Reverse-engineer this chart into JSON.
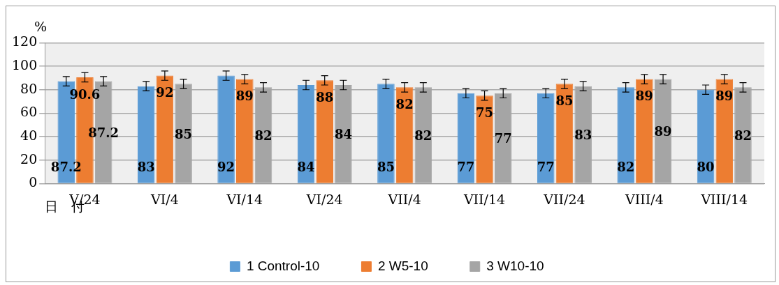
{
  "chart_data": {
    "type": "bar",
    "ylabel": "%",
    "xlabel": "日　付",
    "categories": [
      "V/24",
      "VI/4",
      "VI/14",
      "VI/24",
      "VII/4",
      "VII/14",
      "VII/24",
      "VIII/4",
      "VIII/14"
    ],
    "series": [
      {
        "name": "1 Control-10",
        "color": "#5b9bd5",
        "values": [
          87.2,
          83,
          92,
          84,
          85,
          77,
          77,
          82,
          80
        ],
        "errors": [
          4,
          4,
          4,
          4,
          4,
          4,
          4,
          4,
          4
        ]
      },
      {
        "name": "2 W5-10",
        "color": "#ed7d31",
        "values": [
          90.6,
          92,
          89,
          88,
          82,
          75,
          85,
          89,
          89
        ],
        "errors": [
          4,
          4,
          4,
          4,
          4,
          4,
          4,
          4,
          4
        ]
      },
      {
        "name": "3 W10-10",
        "color": "#a5a5a5",
        "values": [
          87.2,
          85,
          82,
          84,
          82,
          77,
          83,
          89,
          82
        ],
        "errors": [
          4,
          4,
          4,
          4,
          4,
          4,
          4,
          4,
          4
        ]
      }
    ],
    "ylim": [
      0,
      120
    ],
    "yticks": [
      0,
      20,
      40,
      60,
      80,
      100,
      120
    ],
    "grid": "y",
    "legend": "bottom",
    "data_labels": true
  }
}
